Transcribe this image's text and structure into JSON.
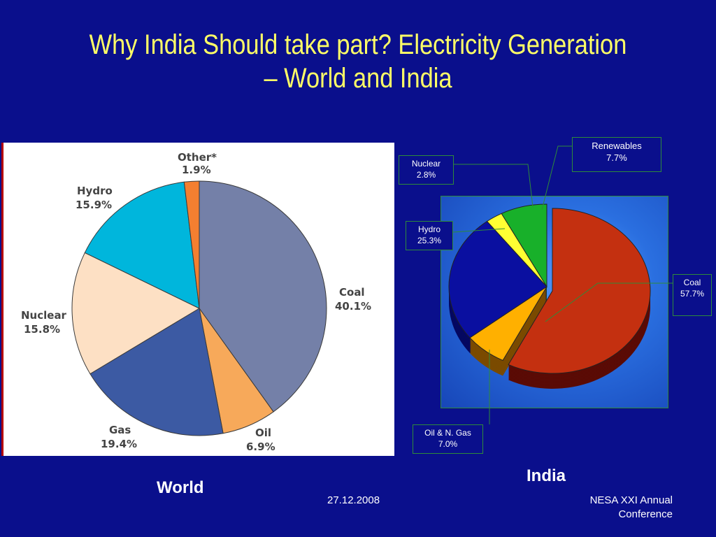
{
  "title": "Why India Should take part? Electricity Generation – World and India",
  "captions": {
    "world": "World",
    "india": "India"
  },
  "footer": {
    "date": "27.12.2008",
    "conference_line1": "NESA XXI Annual",
    "conference_line2": "Conference"
  },
  "colors": {
    "background": "#0a0f8c",
    "title": "#ffff66"
  },
  "chart_data": [
    {
      "type": "pie",
      "name": "World",
      "labels": [
        "Coal",
        "Oil",
        "Gas",
        "Nuclear",
        "Hydro",
        "Other*"
      ],
      "values": [
        40.1,
        6.9,
        19.4,
        15.8,
        15.9,
        1.9
      ],
      "value_labels": [
        "40.1%",
        "6.9%",
        "19.4%",
        "15.8%",
        "15.9%",
        "1.9%"
      ],
      "colors": [
        "#7480a8",
        "#f7a95a",
        "#3c5aa3",
        "#fde0c4",
        "#00b6dc",
        "#f47f30"
      ]
    },
    {
      "type": "pie",
      "name": "India",
      "labels": [
        "Coal",
        "Oil & N. Gas",
        "Hydro",
        "Nuclear",
        "Renewables"
      ],
      "values": [
        57.7,
        7.0,
        25.3,
        2.8,
        7.7
      ],
      "value_labels": [
        "57.7%",
        "7.0%",
        "25.3%",
        "2.8%",
        "7.7%"
      ],
      "colors": [
        "#c43010",
        "#ffb000",
        "#0a0fa0",
        "#ffff33",
        "#18b02a"
      ]
    }
  ]
}
